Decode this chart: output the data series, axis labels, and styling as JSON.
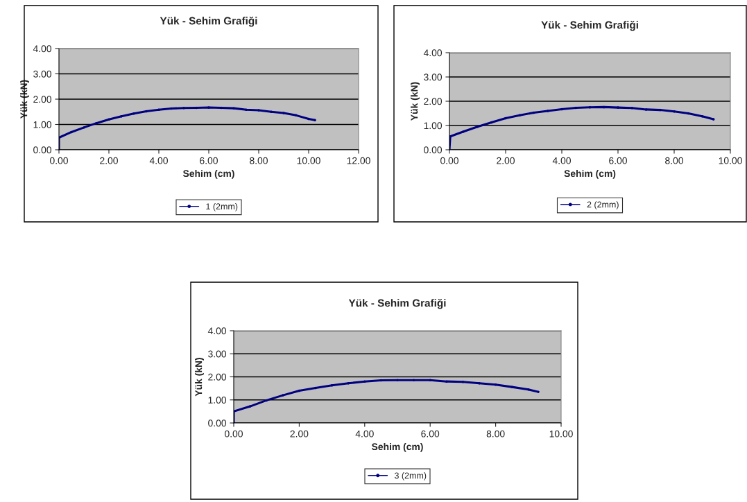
{
  "chart_data": [
    {
      "type": "line",
      "title": "Yük - Sehim Grafiği",
      "xlabel": "Sehim (cm)",
      "ylabel": "Yük (kN)",
      "xlim": [
        0,
        12
      ],
      "xticks": [
        {
          "value": 0,
          "label": "0.00"
        },
        {
          "value": 2,
          "label": "2.00"
        },
        {
          "value": 4,
          "label": "4.00"
        },
        {
          "value": 6,
          "label": "6.00"
        },
        {
          "value": 8,
          "label": "8.00"
        },
        {
          "value": 10,
          "label": "10.00"
        },
        {
          "value": 12,
          "label": "12.00"
        }
      ],
      "ylim": [
        0,
        4
      ],
      "yticks": [
        {
          "value": 0,
          "label": "0.00"
        },
        {
          "value": 1,
          "label": "1.00"
        },
        {
          "value": 2,
          "label": "2.00"
        },
        {
          "value": 3,
          "label": "3.00"
        },
        {
          "value": 4,
          "label": "4.00"
        }
      ],
      "grid": "y",
      "legend": "bottom",
      "marker": "circle",
      "series": [
        {
          "name": "1 (2mm)",
          "color": "#000080",
          "x": [
            0,
            0,
            0.5,
            1.0,
            1.5,
            2.0,
            2.5,
            3.0,
            3.5,
            4.0,
            4.5,
            5.0,
            5.5,
            6.0,
            6.5,
            7.0,
            7.5,
            8.0,
            8.5,
            9.0,
            9.5,
            10.0,
            10.25
          ],
          "values": [
            0,
            0.48,
            0.7,
            0.88,
            1.05,
            1.2,
            1.32,
            1.43,
            1.52,
            1.58,
            1.63,
            1.65,
            1.66,
            1.67,
            1.66,
            1.64,
            1.58,
            1.56,
            1.5,
            1.45,
            1.36,
            1.22,
            1.17
          ]
        }
      ]
    },
    {
      "type": "line",
      "title": "Yük - Sehim Grafiği",
      "xlabel": "Sehim (cm)",
      "ylabel": "Yük (kN)",
      "xlim": [
        0,
        10
      ],
      "xticks": [
        {
          "value": 0,
          "label": "0.00"
        },
        {
          "value": 2,
          "label": "2.00"
        },
        {
          "value": 4,
          "label": "4.00"
        },
        {
          "value": 6,
          "label": "6.00"
        },
        {
          "value": 8,
          "label": "8.00"
        },
        {
          "value": 10,
          "label": "10.00"
        }
      ],
      "ylim": [
        0,
        4
      ],
      "yticks": [
        {
          "value": 0,
          "label": "0.00"
        },
        {
          "value": 1,
          "label": "1.00"
        },
        {
          "value": 2,
          "label": "2.00"
        },
        {
          "value": 3,
          "label": "3.00"
        },
        {
          "value": 4,
          "label": "4.00"
        }
      ],
      "grid": "y",
      "legend": "bottom",
      "marker": "circle",
      "series": [
        {
          "name": "2 (2mm)",
          "color": "#000080",
          "x": [
            0,
            0.03,
            0.5,
            1.0,
            1.5,
            2.0,
            2.5,
            3.0,
            3.5,
            4.0,
            4.5,
            5.0,
            5.5,
            6.0,
            6.5,
            7.0,
            7.5,
            8.0,
            8.5,
            9.0,
            9.4
          ],
          "values": [
            0,
            0.55,
            0.75,
            0.95,
            1.13,
            1.3,
            1.42,
            1.53,
            1.6,
            1.67,
            1.73,
            1.75,
            1.76,
            1.74,
            1.72,
            1.66,
            1.64,
            1.58,
            1.5,
            1.38,
            1.26
          ]
        }
      ]
    },
    {
      "type": "line",
      "title": "Yük - Sehim Grafiği",
      "xlabel": "Sehim (cm)",
      "ylabel": "Yük (kN)",
      "xlim": [
        0,
        10
      ],
      "xticks": [
        {
          "value": 0,
          "label": "0.00"
        },
        {
          "value": 2,
          "label": "2.00"
        },
        {
          "value": 4,
          "label": "4.00"
        },
        {
          "value": 6,
          "label": "6.00"
        },
        {
          "value": 8,
          "label": "8.00"
        },
        {
          "value": 10,
          "label": "10.00"
        }
      ],
      "ylim": [
        0,
        4
      ],
      "yticks": [
        {
          "value": 0,
          "label": "0.00"
        },
        {
          "value": 1,
          "label": "1.00"
        },
        {
          "value": 2,
          "label": "2.00"
        },
        {
          "value": 3,
          "label": "3.00"
        },
        {
          "value": 4,
          "label": "4.00"
        }
      ],
      "grid": "y",
      "legend": "bottom",
      "marker": "circle",
      "series": [
        {
          "name": "3 (2mm)",
          "color": "#000080",
          "x": [
            0,
            0,
            0.5,
            1.0,
            1.5,
            2.0,
            2.5,
            3.0,
            3.5,
            4.0,
            4.5,
            5.0,
            5.5,
            6.0,
            6.5,
            7.0,
            7.5,
            8.0,
            8.5,
            9.0,
            9.3
          ],
          "values": [
            0,
            0.5,
            0.72,
            0.98,
            1.2,
            1.4,
            1.52,
            1.63,
            1.72,
            1.8,
            1.85,
            1.86,
            1.86,
            1.86,
            1.8,
            1.78,
            1.72,
            1.66,
            1.56,
            1.45,
            1.35
          ]
        }
      ]
    }
  ]
}
